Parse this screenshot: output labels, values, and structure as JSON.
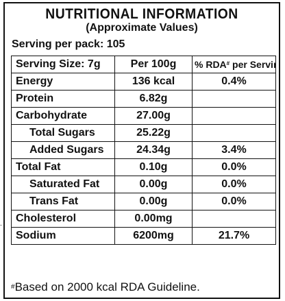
{
  "title": "NUTRITIONAL INFORMATION",
  "subtitle": "(Approximate Values)",
  "serving_per_pack": "Serving per pack: 105",
  "header": {
    "serving_size": "Serving Size: 7g",
    "per_100g": "Per 100g",
    "rda_prefix": "% RDA",
    "rda_mark": "#",
    "rda_suffix": " per Serving"
  },
  "rows": [
    {
      "nutrient": "Energy",
      "per_100g": "136 kcal",
      "rda": "0.4%"
    },
    {
      "nutrient": "Protein",
      "per_100g": "6.82g",
      "rda": ""
    },
    {
      "nutrient": "Carbohydrate",
      "per_100g": "27.00g",
      "rda": ""
    },
    {
      "nutrient": "Total Sugars",
      "per_100g": "25.22g",
      "rda": ""
    },
    {
      "nutrient": "Added Sugars",
      "per_100g": "24.34g",
      "rda": "3.4%"
    },
    {
      "nutrient": "Total Fat",
      "per_100g": "0.10g",
      "rda": "0.0%"
    },
    {
      "nutrient": "Saturated Fat",
      "per_100g": "0.00g",
      "rda": "0.0%"
    },
    {
      "nutrient": "Trans Fat",
      "per_100g": "0.00g",
      "rda": "0.0%"
    },
    {
      "nutrient": "Cholesterol",
      "per_100g": "0.00mg",
      "rda": ""
    },
    {
      "nutrient": "Sodium",
      "per_100g": "6200mg",
      "rda": "21.7%"
    }
  ],
  "footnote": {
    "mark": "#",
    "text": "Based on 2000 kcal RDA Guideline."
  },
  "stray_mark": "."
}
